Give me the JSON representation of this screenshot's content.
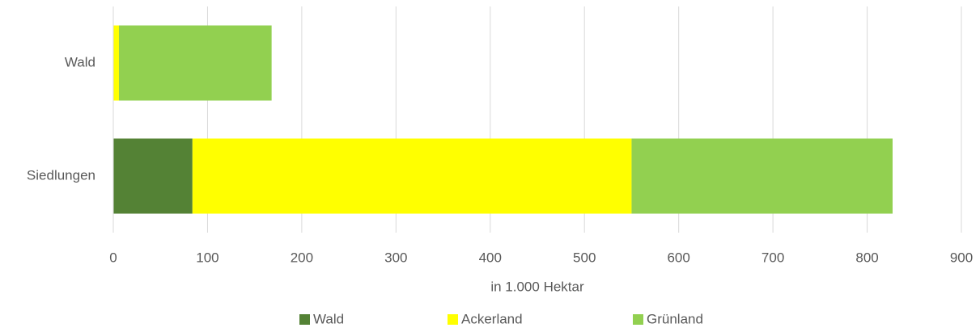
{
  "chart_data": {
    "type": "stacked_barh",
    "categories": [
      "Wald",
      "Siedlungen"
    ],
    "series": [
      {
        "name": "Wald",
        "color": "#548235",
        "values": [
          0,
          84
        ]
      },
      {
        "name": "Ackerland",
        "color": "#ffff00",
        "values": [
          6,
          466
        ]
      },
      {
        "name": "Grünland",
        "color": "#92d050",
        "values": [
          162,
          277
        ]
      }
    ],
    "xlabel": "in 1.000 Hektar",
    "xlim": [
      0,
      900
    ],
    "xticks": [
      0,
      100,
      200,
      300,
      400,
      500,
      600,
      700,
      800,
      900
    ],
    "grid": true,
    "legend": "bottom"
  }
}
